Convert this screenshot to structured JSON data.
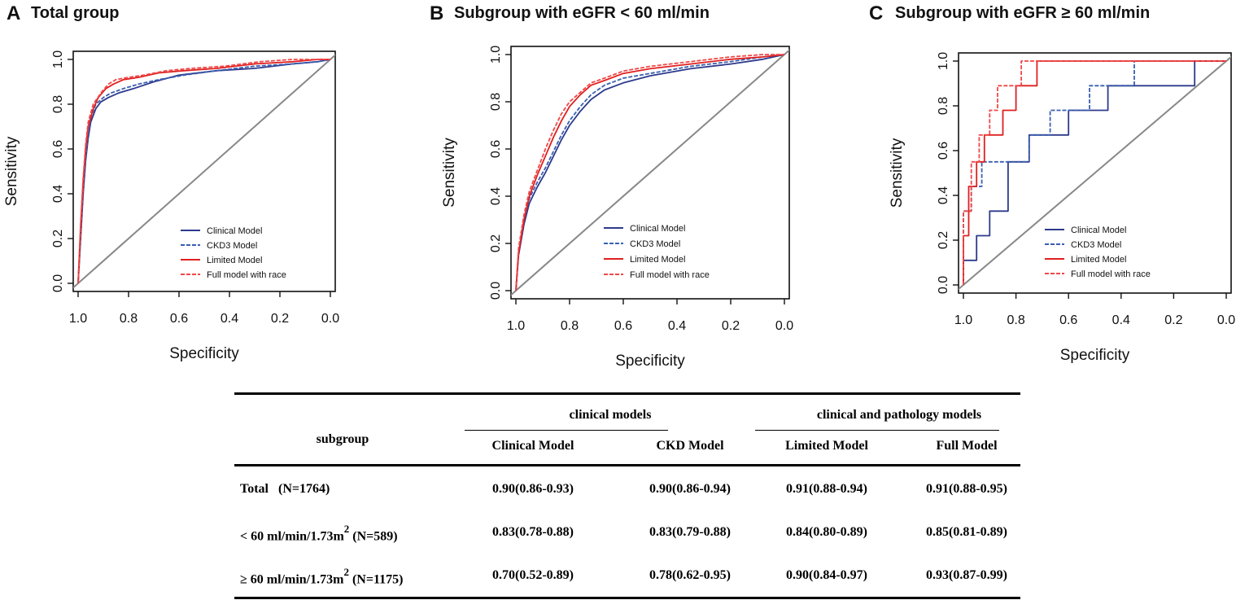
{
  "chart_data": [
    {
      "type": "line",
      "panel": "A",
      "title": "Total group",
      "xlabel": "Specificity",
      "ylabel": "Sensitivity",
      "xlim": [
        1.0,
        0.0
      ],
      "ylim": [
        0,
        1
      ],
      "xticks": [
        "1.0",
        "0.8",
        "0.6",
        "0.4",
        "0.2",
        "0.0"
      ],
      "yticks": [
        "0.0",
        "0.2",
        "0.4",
        "0.6",
        "0.8",
        "1.0"
      ],
      "legend_position": "bottom-right",
      "series": [
        {
          "name": "Clinical Model",
          "color": "#2d3a8c",
          "dash": false,
          "x": [
            1.0,
            0.99,
            0.98,
            0.97,
            0.96,
            0.95,
            0.93,
            0.91,
            0.88,
            0.84,
            0.78,
            0.7,
            0.6,
            0.45,
            0.3,
            0.15,
            0.05,
            0.0
          ],
          "y": [
            0.0,
            0.2,
            0.4,
            0.55,
            0.65,
            0.72,
            0.78,
            0.81,
            0.83,
            0.85,
            0.87,
            0.9,
            0.93,
            0.95,
            0.96,
            0.98,
            0.99,
            1.0
          ]
        },
        {
          "name": "CKD3 Model",
          "color": "#3a5fb0",
          "dash": true,
          "x": [
            1.0,
            0.99,
            0.98,
            0.97,
            0.96,
            0.95,
            0.93,
            0.9,
            0.87,
            0.82,
            0.76,
            0.68,
            0.58,
            0.45,
            0.3,
            0.15,
            0.05,
            0.0
          ],
          "y": [
            0.0,
            0.22,
            0.42,
            0.57,
            0.67,
            0.74,
            0.8,
            0.83,
            0.85,
            0.87,
            0.89,
            0.91,
            0.93,
            0.95,
            0.97,
            0.98,
            0.99,
            1.0
          ]
        },
        {
          "name": "Limited Model",
          "color": "#e02020",
          "dash": false,
          "x": [
            1.0,
            0.99,
            0.98,
            0.97,
            0.96,
            0.94,
            0.92,
            0.89,
            0.86,
            0.82,
            0.76,
            0.68,
            0.58,
            0.45,
            0.3,
            0.15,
            0.05,
            0.0
          ],
          "y": [
            0.0,
            0.25,
            0.45,
            0.6,
            0.7,
            0.78,
            0.83,
            0.87,
            0.89,
            0.91,
            0.92,
            0.94,
            0.95,
            0.96,
            0.98,
            0.99,
            1.0,
            1.0
          ]
        },
        {
          "name": "Full model with race",
          "color": "#f04848",
          "dash": true,
          "x": [
            1.0,
            0.99,
            0.98,
            0.97,
            0.96,
            0.94,
            0.91,
            0.88,
            0.85,
            0.8,
            0.74,
            0.65,
            0.55,
            0.42,
            0.28,
            0.15,
            0.05,
            0.0
          ],
          "y": [
            0.0,
            0.27,
            0.47,
            0.62,
            0.72,
            0.8,
            0.85,
            0.89,
            0.91,
            0.92,
            0.93,
            0.95,
            0.96,
            0.97,
            0.99,
            1.0,
            1.0,
            1.0
          ]
        }
      ]
    },
    {
      "type": "line",
      "panel": "B",
      "title": "Subgroup with eGFR < 60 ml/min",
      "xlabel": "Specificity",
      "ylabel": "Sensitivity",
      "xlim": [
        1.0,
        0.0
      ],
      "ylim": [
        0,
        1
      ],
      "xticks": [
        "1.0",
        "0.8",
        "0.6",
        "0.4",
        "0.2",
        "0.0"
      ],
      "yticks": [
        "0.0",
        "0.2",
        "0.4",
        "0.6",
        "0.8",
        "1.0"
      ],
      "legend_position": "bottom-right",
      "series": [
        {
          "name": "Clinical Model",
          "color": "#2d3a8c",
          "dash": false,
          "x": [
            1.0,
            0.99,
            0.97,
            0.95,
            0.92,
            0.89,
            0.86,
            0.83,
            0.8,
            0.76,
            0.72,
            0.67,
            0.6,
            0.5,
            0.35,
            0.2,
            0.08,
            0.0
          ],
          "y": [
            0.0,
            0.15,
            0.28,
            0.37,
            0.44,
            0.5,
            0.57,
            0.64,
            0.7,
            0.76,
            0.81,
            0.85,
            0.88,
            0.91,
            0.94,
            0.96,
            0.98,
            1.0
          ]
        },
        {
          "name": "CKD3 Model",
          "color": "#3a5fb0",
          "dash": true,
          "x": [
            1.0,
            0.99,
            0.97,
            0.95,
            0.92,
            0.89,
            0.86,
            0.83,
            0.8,
            0.76,
            0.72,
            0.67,
            0.6,
            0.5,
            0.35,
            0.2,
            0.08,
            0.0
          ],
          "y": [
            0.0,
            0.17,
            0.3,
            0.39,
            0.46,
            0.52,
            0.59,
            0.66,
            0.72,
            0.78,
            0.83,
            0.87,
            0.9,
            0.92,
            0.95,
            0.97,
            0.99,
            1.0
          ]
        },
        {
          "name": "Limited Model",
          "color": "#e02020",
          "dash": false,
          "x": [
            1.0,
            0.99,
            0.97,
            0.95,
            0.92,
            0.89,
            0.86,
            0.83,
            0.8,
            0.76,
            0.72,
            0.67,
            0.6,
            0.5,
            0.35,
            0.2,
            0.08,
            0.0
          ],
          "y": [
            0.0,
            0.16,
            0.3,
            0.4,
            0.49,
            0.57,
            0.65,
            0.72,
            0.78,
            0.83,
            0.87,
            0.89,
            0.92,
            0.94,
            0.96,
            0.98,
            0.99,
            1.0
          ]
        },
        {
          "name": "Full model with race",
          "color": "#f04848",
          "dash": true,
          "x": [
            1.0,
            0.99,
            0.97,
            0.95,
            0.92,
            0.89,
            0.86,
            0.83,
            0.8,
            0.76,
            0.72,
            0.67,
            0.6,
            0.5,
            0.35,
            0.2,
            0.08,
            0.0
          ],
          "y": [
            0.0,
            0.18,
            0.32,
            0.42,
            0.51,
            0.6,
            0.68,
            0.75,
            0.8,
            0.84,
            0.88,
            0.9,
            0.93,
            0.95,
            0.97,
            0.99,
            1.0,
            1.0
          ]
        }
      ]
    },
    {
      "type": "line",
      "panel": "C",
      "title": "Subgroup with eGFR ≥ 60 ml/min",
      "xlabel": "Specificity",
      "ylabel": "Sensitivity",
      "xlim": [
        1.0,
        0.0
      ],
      "ylim": [
        0,
        1
      ],
      "xticks": [
        "1.0",
        "0.8",
        "0.6",
        "0.4",
        "0.2",
        "0.0"
      ],
      "yticks": [
        "0.0",
        "0.2",
        "0.4",
        "0.6",
        "0.8",
        "1.0"
      ],
      "legend_position": "bottom-right",
      "series": [
        {
          "name": "Clinical Model",
          "color": "#2d3a8c",
          "dash": false,
          "x": [
            1.0,
            1.0,
            0.95,
            0.95,
            0.9,
            0.9,
            0.83,
            0.83,
            0.75,
            0.75,
            0.6,
            0.6,
            0.45,
            0.45,
            0.12,
            0.12,
            0.0
          ],
          "y": [
            0.0,
            0.11,
            0.11,
            0.22,
            0.22,
            0.33,
            0.33,
            0.55,
            0.55,
            0.67,
            0.67,
            0.78,
            0.78,
            0.89,
            0.89,
            1.0,
            1.0
          ]
        },
        {
          "name": "CKD3 Model",
          "color": "#3a5fb0",
          "dash": true,
          "x": [
            1.0,
            1.0,
            0.97,
            0.97,
            0.93,
            0.93,
            0.75,
            0.75,
            0.67,
            0.67,
            0.52,
            0.52,
            0.35,
            0.35,
            0.0
          ],
          "y": [
            0.0,
            0.33,
            0.33,
            0.44,
            0.44,
            0.55,
            0.55,
            0.67,
            0.67,
            0.78,
            0.78,
            0.89,
            0.89,
            1.0,
            1.0
          ]
        },
        {
          "name": "Limited Model",
          "color": "#e02020",
          "dash": false,
          "x": [
            1.0,
            1.0,
            0.98,
            0.98,
            0.95,
            0.95,
            0.92,
            0.92,
            0.85,
            0.85,
            0.8,
            0.8,
            0.72,
            0.72,
            0.0
          ],
          "y": [
            0.0,
            0.22,
            0.22,
            0.44,
            0.44,
            0.55,
            0.55,
            0.67,
            0.67,
            0.78,
            0.78,
            0.89,
            0.89,
            1.0,
            1.0
          ]
        },
        {
          "name": "Full model with race",
          "color": "#f04848",
          "dash": true,
          "x": [
            1.0,
            1.0,
            0.97,
            0.97,
            0.94,
            0.94,
            0.9,
            0.9,
            0.87,
            0.87,
            0.78,
            0.78,
            0.0
          ],
          "y": [
            0.0,
            0.33,
            0.33,
            0.55,
            0.55,
            0.67,
            0.67,
            0.78,
            0.78,
            0.89,
            0.89,
            1.0,
            1.0
          ]
        }
      ]
    }
  ],
  "table": {
    "group_headers": [
      "clinical models",
      "clinical and pathology models"
    ],
    "headers": [
      "subgroup",
      "Clinical Model",
      "CKD Model",
      "Limited Model",
      "Full Model"
    ],
    "rows": [
      {
        "subgroup": "Total",
        "n": "(N=1764)",
        "unit_sup": "",
        "values": [
          "0.90(0.86-0.93)",
          "0.90(0.86-0.94)",
          "0.91(0.88-0.94)",
          "0.91(0.88-0.95)"
        ]
      },
      {
        "subgroup": "< 60 ml/min/1.73m",
        "n": "(N=589)",
        "unit_sup": "2",
        "values": [
          "0.83(0.78-0.88)",
          "0.83(0.79-0.88)",
          "0.84(0.80-0.89)",
          "0.85(0.81-0.89)"
        ]
      },
      {
        "subgroup": "≥  60 ml/min/1.73m",
        "n": "(N=1175)",
        "unit_sup": "2",
        "values": [
          "0.70(0.52-0.89)",
          "0.78(0.62-0.95)",
          "0.90(0.84-0.97)",
          "0.93(0.87-0.99)"
        ]
      }
    ]
  },
  "colors": {
    "reference_line": "#888888",
    "axis": "#111111"
  }
}
